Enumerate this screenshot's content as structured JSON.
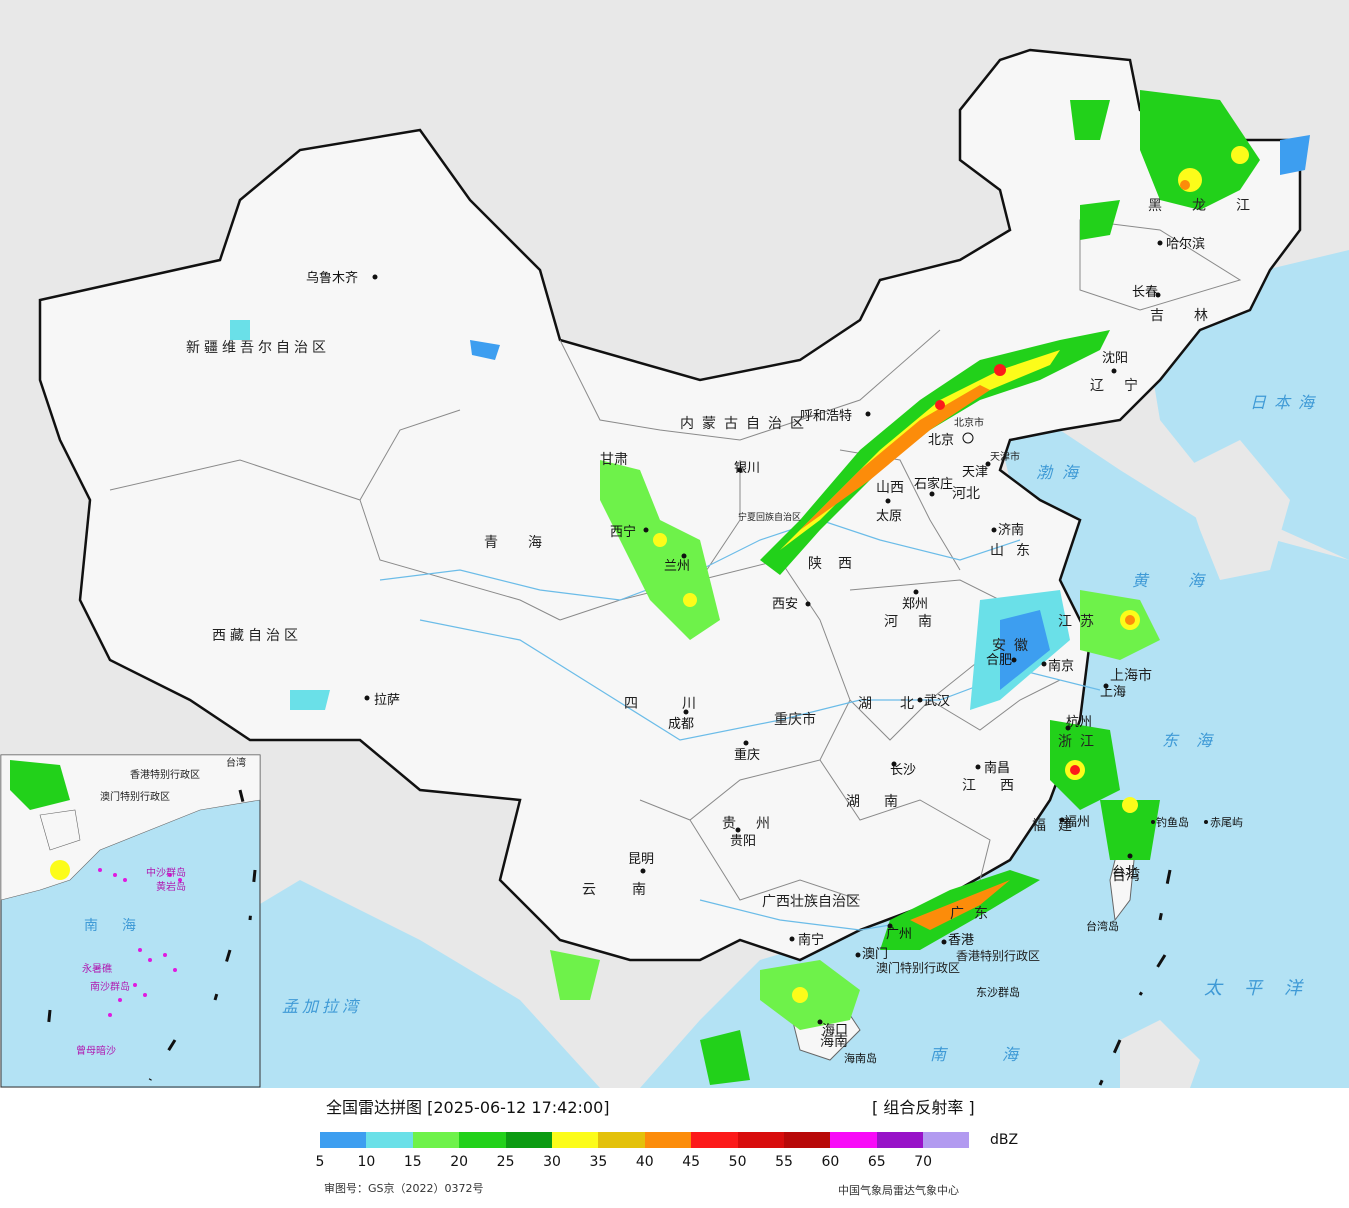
{
  "colors": {
    "sea": "#b3e2f4",
    "land_china": "#f7f7f7",
    "land_other": "#e8e8e8",
    "border": "#111111",
    "river": "#6bbce8"
  },
  "map": {
    "place_labels": [
      "乌鲁木齐",
      "拉萨",
      "西宁",
      "兰州",
      "银川",
      "呼和浩特",
      "北京",
      "天津",
      "石家庄",
      "太原",
      "济南",
      "郑州",
      "西安",
      "成都",
      "重庆",
      "贵阳",
      "昆明",
      "南宁",
      "长沙",
      "武汉",
      "合肥",
      "南京",
      "上海",
      "杭州",
      "南昌",
      "福州",
      "广州",
      "香港",
      "澳门",
      "海口",
      "沈阳",
      "长春",
      "哈尔滨",
      "台北",
      "钓鱼岛",
      "赤尾屿",
      "东沙群岛",
      "海南岛",
      "台湾岛"
    ],
    "region_labels": [
      "新疆维吾尔自治区",
      "西藏自治区",
      "青海",
      "甘肃",
      "内蒙古自治区",
      "宁夏回族自治区",
      "陕西",
      "山西",
      "河北",
      "山东",
      "河南",
      "四川",
      "重庆市",
      "湖北",
      "湖南",
      "贵州",
      "云南",
      "广西壮族自治区",
      "广东",
      "江西",
      "福建",
      "安徽",
      "江苏",
      "浙江",
      "上海市",
      "黑龙江",
      "吉林",
      "辽宁",
      "天津市",
      "北京市",
      "台湾",
      "海南",
      "香港特别行政区",
      "澳门特别行政区"
    ],
    "sea_labels": [
      "日本海",
      "渤海",
      "黄海",
      "东海",
      "太平洋",
      "南海",
      "孟加拉湾"
    ],
    "inset_labels": [
      "南海",
      "中沙群岛",
      "黄岩岛",
      "永暑礁",
      "南沙群岛",
      "曾母暗沙",
      "香港特别行政区",
      "澳门特别行政区",
      "台湾"
    ]
  },
  "legend": {
    "title": "全国雷达拼图 [2025-06-12 17:42:00]",
    "product": "[ 组合反射率 ]",
    "unit": "dBZ",
    "colors": [
      "#3d9ef0",
      "#6ae0e8",
      "#6ef24a",
      "#22d11a",
      "#0b9b12",
      "#fcfc1a",
      "#e3c10a",
      "#fc8c0a",
      "#fc1a1a",
      "#d80c0c",
      "#b80808",
      "#f80af8",
      "#9812c8",
      "#b29af0"
    ],
    "ticks": [
      "5",
      "10",
      "15",
      "20",
      "25",
      "30",
      "35",
      "40",
      "45",
      "50",
      "55",
      "60",
      "65",
      "70"
    ],
    "review_no": "审图号：GS京（2022）0372号",
    "organization": "中国气象局雷达气象中心"
  }
}
